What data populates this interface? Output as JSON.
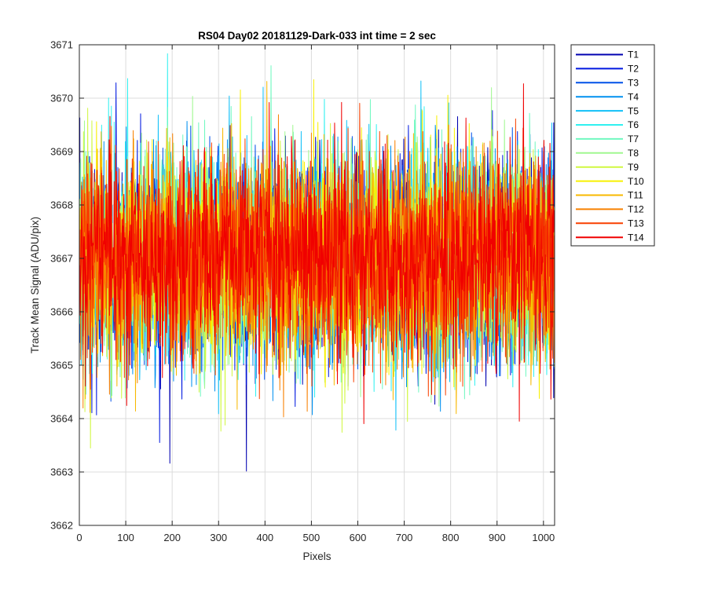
{
  "chart_data": {
    "type": "line",
    "title": "RS04 Day02 20181129-Dark-033 int time = 2 sec",
    "xlabel": "Pixels",
    "ylabel": "Track Mean Signal (ADU/pix)",
    "xlim": [
      0,
      1024
    ],
    "ylim": [
      3662,
      3671
    ],
    "xticks": [
      0,
      100,
      200,
      300,
      400,
      500,
      600,
      700,
      800,
      900,
      1000
    ],
    "yticks": [
      3662,
      3663,
      3664,
      3665,
      3666,
      3667,
      3668,
      3669,
      3670,
      3671
    ],
    "grid": true,
    "legend_position": "outside-top-right",
    "x_range": [
      1,
      1024
    ],
    "noise_description": "per-pixel track mean signal, approx. 3667 ADU mean with ~0.9 ADU std deviation",
    "series": [
      {
        "name": "T1",
        "color": "#0000b0",
        "mean": 3667.0,
        "std": 0.95
      },
      {
        "name": "T2",
        "color": "#0018e0",
        "mean": 3667.0,
        "std": 0.95
      },
      {
        "name": "T3",
        "color": "#0050e8",
        "mean": 3667.0,
        "std": 0.95
      },
      {
        "name": "T4",
        "color": "#0090f0",
        "mean": 3667.0,
        "std": 0.95
      },
      {
        "name": "T5",
        "color": "#10c0f8",
        "mean": 3667.0,
        "std": 0.95
      },
      {
        "name": "T6",
        "color": "#30f0f0",
        "mean": 3667.0,
        "std": 0.95
      },
      {
        "name": "T7",
        "color": "#70f8c0",
        "mean": 3667.0,
        "std": 0.95
      },
      {
        "name": "T8",
        "color": "#a0f890",
        "mean": 3667.0,
        "std": 0.95
      },
      {
        "name": "T9",
        "color": "#d0f840",
        "mean": 3667.0,
        "std": 0.95
      },
      {
        "name": "T10",
        "color": "#f8f000",
        "mean": 3667.0,
        "std": 0.95
      },
      {
        "name": "T11",
        "color": "#f8b800",
        "mean": 3667.0,
        "std": 0.95
      },
      {
        "name": "T12",
        "color": "#f88000",
        "mean": 3667.0,
        "std": 0.95
      },
      {
        "name": "T13",
        "color": "#f84000",
        "mean": 3667.0,
        "std": 0.95
      },
      {
        "name": "T14",
        "color": "#f00000",
        "mean": 3667.0,
        "std": 0.95
      }
    ]
  }
}
